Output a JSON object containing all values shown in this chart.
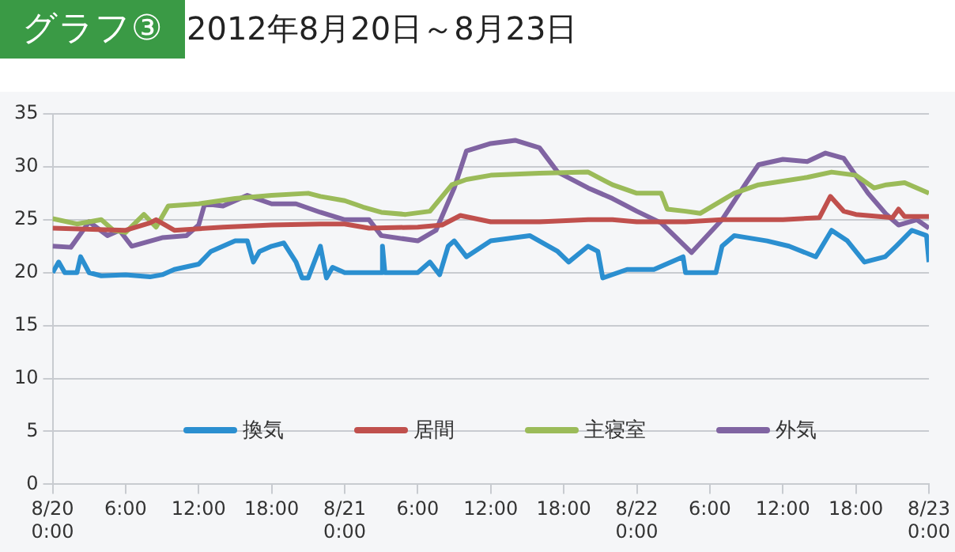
{
  "chart_data": {
    "type": "line",
    "title": "グラフ③",
    "subtitle": "2012年8月20日～8月23日",
    "xlim": [
      "2012-08-20T00:00",
      "2012-08-23T00:00"
    ],
    "xticks": [
      {
        "value": "2012-08-20T00:00",
        "label": "8/20\n0:00"
      },
      {
        "value": "2012-08-20T06:00",
        "label": "6:00"
      },
      {
        "value": "2012-08-20T12:00",
        "label": "12:00"
      },
      {
        "value": "2012-08-20T18:00",
        "label": "18:00"
      },
      {
        "value": "2012-08-21T00:00",
        "label": "8/21\n0:00"
      },
      {
        "value": "2012-08-21T06:00",
        "label": "6:00"
      },
      {
        "value": "2012-08-21T12:00",
        "label": "12:00"
      },
      {
        "value": "2012-08-21T18:00",
        "label": "18:00"
      },
      {
        "value": "2012-08-22T00:00",
        "label": "8/22\n0:00"
      },
      {
        "value": "2012-08-22T06:00",
        "label": "6:00"
      },
      {
        "value": "2012-08-22T12:00",
        "label": "12:00"
      },
      {
        "value": "2012-08-22T18:00",
        "label": "18:00"
      },
      {
        "value": "2012-08-23T00:00",
        "label": "8/23\n0:00"
      }
    ],
    "ylim": [
      0,
      35
    ],
    "yticks": [
      0,
      5,
      10,
      15,
      20,
      25,
      30,
      35
    ],
    "grid": "y",
    "legend": "bottom",
    "marker": "none",
    "line_style": "solid",
    "series": [
      {
        "name": "換気",
        "color": "#2b8fd0",
        "x": [
          "2012-08-20T00:00",
          "2012-08-20T00:30",
          "2012-08-20T01:00",
          "2012-08-20T02:00",
          "2012-08-20T02:18",
          "2012-08-20T03:00",
          "2012-08-20T04:00",
          "2012-08-20T06:00",
          "2012-08-20T08:00",
          "2012-08-20T09:00",
          "2012-08-20T10:00",
          "2012-08-20T12:00",
          "2012-08-20T13:00",
          "2012-08-20T14:00",
          "2012-08-20T15:00",
          "2012-08-20T16:00",
          "2012-08-20T16:30",
          "2012-08-20T17:00",
          "2012-08-20T18:00",
          "2012-08-20T19:00",
          "2012-08-20T20:00",
          "2012-08-20T20:30",
          "2012-08-20T21:00",
          "2012-08-20T22:00",
          "2012-08-20T22:30",
          "2012-08-20T23:00",
          "2012-08-21T00:00",
          "2012-08-21T02:00",
          "2012-08-21T03:00",
          "2012-08-21T03:06",
          "2012-08-21T03:18",
          "2012-08-21T06:00",
          "2012-08-21T07:00",
          "2012-08-21T07:48",
          "2012-08-21T08:30",
          "2012-08-21T09:00",
          "2012-08-21T10:00",
          "2012-08-21T12:00",
          "2012-08-21T15:12",
          "2012-08-21T17:30",
          "2012-08-21T18:24",
          "2012-08-21T20:00",
          "2012-08-21T20:48",
          "2012-08-21T21:12",
          "2012-08-21T23:12",
          "2012-08-22T01:24",
          "2012-08-22T03:48",
          "2012-08-22T04:00",
          "2012-08-22T06:30",
          "2012-08-22T07:00",
          "2012-08-22T08:00",
          "2012-08-22T10:42",
          "2012-08-22T12:30",
          "2012-08-22T14:42",
          "2012-08-22T16:00",
          "2012-08-22T17:18",
          "2012-08-22T18:42",
          "2012-08-22T20:24",
          "2012-08-22T21:18",
          "2012-08-22T22:36",
          "2012-08-22T23:48",
          "2012-08-23T00:00"
        ],
        "values": [
          20,
          21,
          20,
          20,
          21.5,
          20,
          19.7,
          19.8,
          19.6,
          19.8,
          20.3,
          20.8,
          22,
          22.5,
          23,
          23,
          21,
          22,
          22.5,
          22.8,
          21,
          19.5,
          19.5,
          22.5,
          19.5,
          20.5,
          20,
          20,
          20,
          22.5,
          20,
          20,
          21,
          19.8,
          22.5,
          23,
          21.5,
          23,
          23.5,
          22,
          21,
          22.5,
          22,
          19.5,
          20.3,
          20.3,
          21.5,
          20,
          20,
          22.5,
          23.5,
          23,
          22.5,
          21.5,
          24,
          23,
          21,
          21.5,
          22.5,
          24,
          23.5,
          21
        ]
      },
      {
        "name": "居間",
        "color": "#c0504d",
        "x": [
          "2012-08-20T00:00",
          "2012-08-20T06:00",
          "2012-08-20T08:00",
          "2012-08-20T08:30",
          "2012-08-20T10:00",
          "2012-08-20T14:00",
          "2012-08-20T18:00",
          "2012-08-20T22:00",
          "2012-08-21T00:00",
          "2012-08-21T02:00",
          "2012-08-21T06:00",
          "2012-08-21T08:00",
          "2012-08-21T09:30",
          "2012-08-21T12:00",
          "2012-08-21T16:00",
          "2012-08-21T20:00",
          "2012-08-21T22:00",
          "2012-08-22T00:00",
          "2012-08-22T04:00",
          "2012-08-22T07:00",
          "2012-08-22T12:00",
          "2012-08-22T15:00",
          "2012-08-22T15:54",
          "2012-08-22T17:00",
          "2012-08-22T18:00",
          "2012-08-22T21:00",
          "2012-08-22T21:30",
          "2012-08-22T22:00",
          "2012-08-23T00:00"
        ],
        "values": [
          24.2,
          24,
          24.7,
          25,
          24,
          24.3,
          24.5,
          24.6,
          24.6,
          24.2,
          24.3,
          24.5,
          25.4,
          24.8,
          24.8,
          25,
          25,
          24.8,
          24.8,
          25,
          25,
          25.2,
          27.2,
          25.8,
          25.5,
          25.2,
          26,
          25.3,
          25.3
        ]
      },
      {
        "name": "主寝室",
        "color": "#9bbb59",
        "x": [
          "2012-08-20T00:00",
          "2012-08-20T02:00",
          "2012-08-20T04:00",
          "2012-08-20T05:00",
          "2012-08-20T06:00",
          "2012-08-20T07:30",
          "2012-08-20T08:30",
          "2012-08-20T09:30",
          "2012-08-20T12:00",
          "2012-08-20T15:00",
          "2012-08-20T18:00",
          "2012-08-20T21:00",
          "2012-08-20T22:00",
          "2012-08-21T00:00",
          "2012-08-21T01:30",
          "2012-08-21T03:00",
          "2012-08-21T05:00",
          "2012-08-21T07:00",
          "2012-08-21T08:48",
          "2012-08-21T10:00",
          "2012-08-21T12:00",
          "2012-08-21T16:00",
          "2012-08-21T20:00",
          "2012-08-21T22:00",
          "2012-08-22T00:00",
          "2012-08-22T02:00",
          "2012-08-22T02:30",
          "2012-08-22T04:00",
          "2012-08-22T05:12",
          "2012-08-22T08:00",
          "2012-08-22T10:00",
          "2012-08-22T14:00",
          "2012-08-22T16:00",
          "2012-08-22T18:00",
          "2012-08-22T19:30",
          "2012-08-22T20:30",
          "2012-08-22T22:00",
          "2012-08-23T00:00"
        ],
        "values": [
          25.1,
          24.6,
          25,
          24,
          23.8,
          25.5,
          24.3,
          26.3,
          26.5,
          27,
          27.3,
          27.5,
          27.2,
          26.8,
          26.2,
          25.7,
          25.5,
          25.8,
          28.3,
          28.8,
          29.2,
          29.4,
          29.5,
          28.3,
          27.5,
          27.5,
          26,
          25.8,
          25.6,
          27.5,
          28.3,
          29,
          29.5,
          29.2,
          28,
          28.3,
          28.5,
          27.5
        ]
      },
      {
        "name": "外気",
        "color": "#8064a2",
        "x": [
          "2012-08-20T00:00",
          "2012-08-20T01:30",
          "2012-08-20T03:00",
          "2012-08-20T04:30",
          "2012-08-20T05:30",
          "2012-08-20T06:30",
          "2012-08-20T09:00",
          "2012-08-20T11:00",
          "2012-08-20T12:00",
          "2012-08-20T12:30",
          "2012-08-20T14:00",
          "2012-08-20T16:00",
          "2012-08-20T18:00",
          "2012-08-20T20:00",
          "2012-08-20T22:00",
          "2012-08-21T00:00",
          "2012-08-21T02:00",
          "2012-08-21T03:00",
          "2012-08-21T06:00",
          "2012-08-21T07:30",
          "2012-08-21T09:00",
          "2012-08-21T10:00",
          "2012-08-21T12:00",
          "2012-08-21T14:00",
          "2012-08-21T16:00",
          "2012-08-21T17:30",
          "2012-08-21T20:00",
          "2012-08-21T22:00",
          "2012-08-22T00:00",
          "2012-08-22T02:00",
          "2012-08-22T04:30",
          "2012-08-22T07:00",
          "2012-08-22T09:00",
          "2012-08-22T10:00",
          "2012-08-22T12:00",
          "2012-08-22T14:00",
          "2012-08-22T15:30",
          "2012-08-22T17:00",
          "2012-08-22T19:00",
          "2012-08-22T20:30",
          "2012-08-22T21:30",
          "2012-08-22T23:00",
          "2012-08-23T00:00"
        ],
        "values": [
          22.5,
          22.4,
          24.8,
          23.5,
          24,
          22.5,
          23.3,
          23.5,
          24.5,
          26.5,
          26.3,
          27.3,
          26.5,
          26.5,
          25.7,
          25,
          25,
          23.5,
          23,
          24,
          28,
          31.5,
          32.2,
          32.5,
          31.8,
          29.5,
          28,
          27,
          25.8,
          24.7,
          21.9,
          25,
          28.5,
          30.2,
          30.7,
          30.5,
          31.3,
          30.8,
          27.5,
          25.5,
          24.5,
          25,
          24.2
        ]
      }
    ]
  }
}
